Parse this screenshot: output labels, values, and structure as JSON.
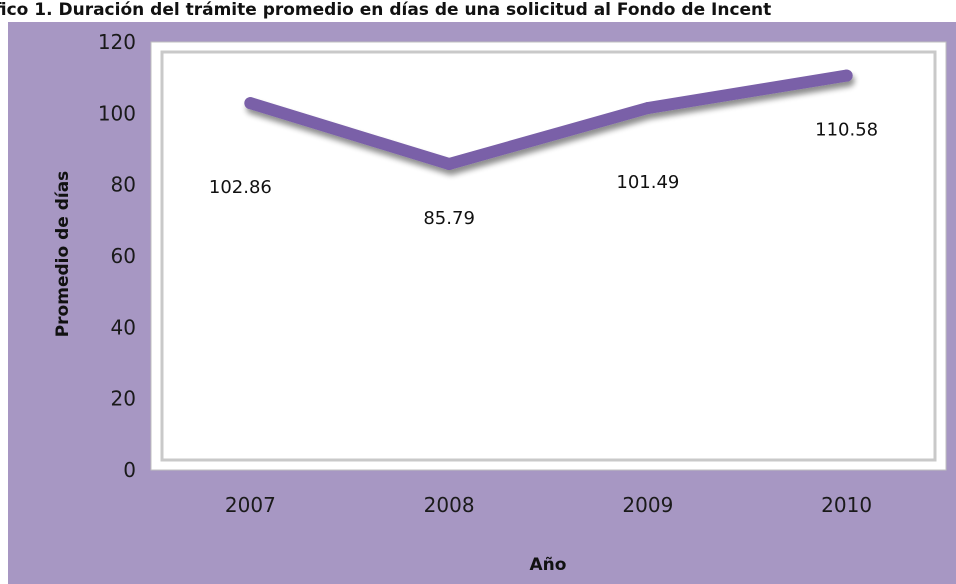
{
  "title": "fico 1. Duración del trámite promedio en días de una solicitud al Fondo de Incent",
  "chart_data": {
    "type": "line",
    "categories": [
      "2007",
      "2008",
      "2009",
      "2010"
    ],
    "values": [
      102.86,
      85.79,
      101.49,
      110.58
    ],
    "data_labels": [
      "102.86",
      "85.79",
      "101.49",
      "110.58"
    ],
    "xlabel": "Año",
    "ylabel": "Promedio de días",
    "ylim": [
      0,
      120
    ],
    "yticks": [
      "0",
      "20",
      "40",
      "60",
      "80",
      "100",
      "120"
    ],
    "grid": false,
    "legend": "none"
  },
  "colors": {
    "background": "#a797c3",
    "plot_area": "#ffffff",
    "line": "#7a60a8"
  }
}
